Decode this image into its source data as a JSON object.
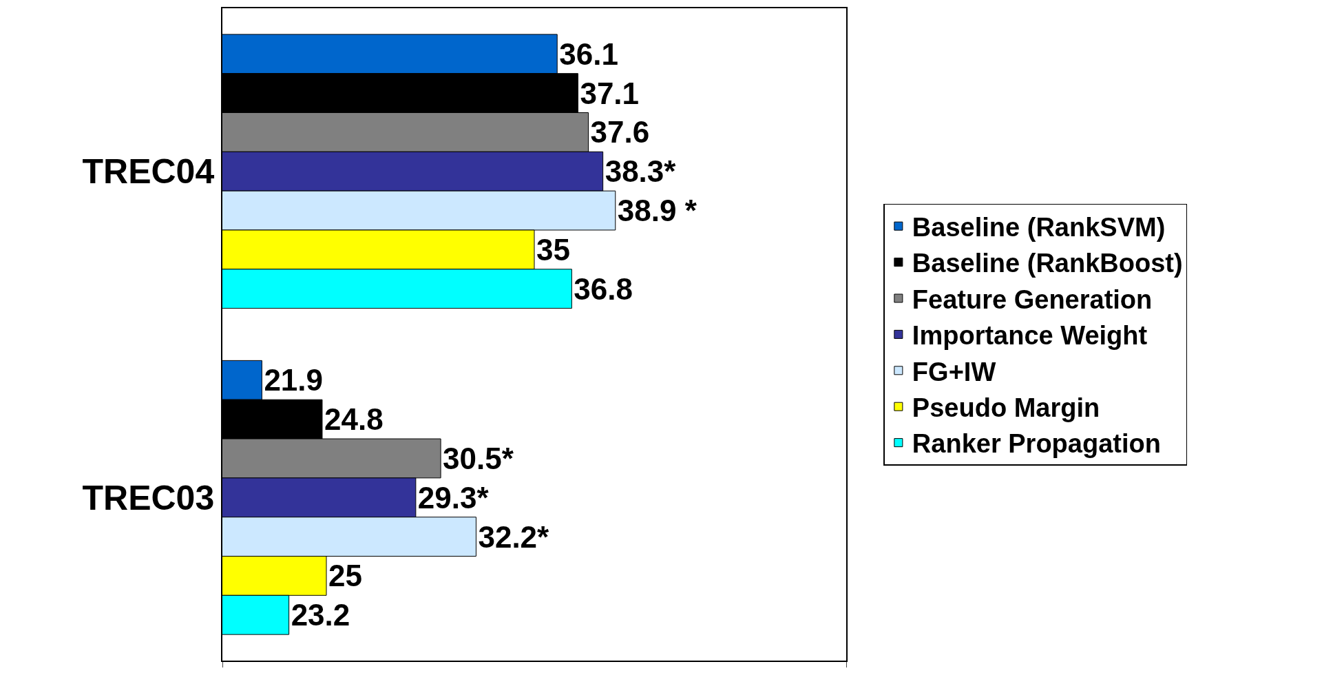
{
  "chart_data": {
    "type": "bar",
    "orientation": "horizontal",
    "categories": [
      "TREC04",
      "TREC03"
    ],
    "series": [
      {
        "name": "Baseline (RankSVM)",
        "color": "#0066cc",
        "values": [
          36.1,
          21.9
        ],
        "value_labels": [
          "36.1",
          "21.9"
        ]
      },
      {
        "name": "Baseline (RankBoost)",
        "color": "#000000",
        "values": [
          37.1,
          24.8
        ],
        "value_labels": [
          "37.1",
          "24.8"
        ]
      },
      {
        "name": "Feature Generation",
        "color": "#808080",
        "values": [
          37.6,
          30.5
        ],
        "value_labels": [
          "37.6",
          "30.5*"
        ]
      },
      {
        "name": "Importance Weight",
        "color": "#333399",
        "values": [
          38.3,
          29.3
        ],
        "value_labels": [
          "38.3*",
          "29.3*"
        ]
      },
      {
        "name": "FG+IW",
        "color": "#cce8ff",
        "values": [
          38.9,
          32.2
        ],
        "value_labels": [
          "38.9 *",
          "32.2*"
        ]
      },
      {
        "name": "Pseudo Margin",
        "color": "#ffff00",
        "values": [
          35,
          25
        ],
        "value_labels": [
          "35",
          "25"
        ]
      },
      {
        "name": "Ranker Propagation",
        "color": "#00ffff",
        "values": [
          36.8,
          23.2
        ],
        "value_labels": [
          "36.8",
          "23.2"
        ]
      }
    ],
    "xlim": [
      20,
      50
    ],
    "xticks": [
      {
        "value": 20,
        "label": null
      },
      {
        "value": 50,
        "label": null
      }
    ],
    "tick_labels": "y",
    "legend": "right"
  }
}
